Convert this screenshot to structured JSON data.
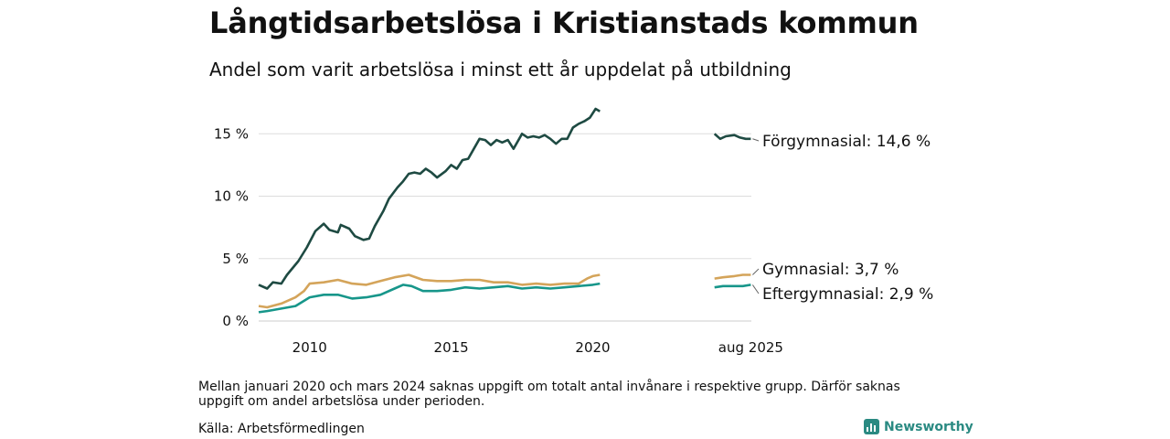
{
  "title": "Långtidsarbetslösa i Kristianstads kommun",
  "subtitle": "Andel som varit arbetslösa i minst ett år uppdelat på utbildning",
  "note": "Mellan januari 2020 och mars 2024 saknas uppgift om totalt antal invånare i respektive grupp. Därför saknas uppgift om andel arbetslösa under perioden.",
  "source": "Källa: Arbetsförmedlingen",
  "brand": "Newsworthy",
  "chart_data": {
    "type": "line",
    "ylim": [
      0,
      17
    ],
    "yticks": [
      0,
      5,
      10,
      15
    ],
    "ytick_labels": [
      "0 %",
      "5 %",
      "10 %",
      "15 %"
    ],
    "xticks": [
      2010,
      2015,
      2020,
      2025.58
    ],
    "xtick_labels": [
      "2010",
      "2015",
      "2020",
      "aug 2025"
    ],
    "grid": "horizontal",
    "series": [
      {
        "name": "Förgymnasial",
        "end_label": "Förgymnasial: 14,6 %",
        "color": "#1e4a42",
        "segments": [
          [
            [
              2008.2,
              2.9
            ],
            [
              2008.5,
              2.6
            ],
            [
              2008.7,
              3.1
            ],
            [
              2009.0,
              3.0
            ],
            [
              2009.2,
              3.7
            ],
            [
              2009.6,
              4.8
            ],
            [
              2009.9,
              5.9
            ],
            [
              2010.2,
              7.2
            ],
            [
              2010.5,
              7.8
            ],
            [
              2010.7,
              7.3
            ],
            [
              2011.0,
              7.1
            ],
            [
              2011.1,
              7.7
            ],
            [
              2011.4,
              7.4
            ],
            [
              2011.6,
              6.8
            ],
            [
              2011.9,
              6.5
            ],
            [
              2012.1,
              6.6
            ],
            [
              2012.3,
              7.6
            ],
            [
              2012.6,
              8.8
            ],
            [
              2012.8,
              9.8
            ],
            [
              2013.1,
              10.7
            ],
            [
              2013.3,
              11.2
            ],
            [
              2013.5,
              11.8
            ],
            [
              2013.7,
              11.9
            ],
            [
              2013.9,
              11.8
            ],
            [
              2014.1,
              12.2
            ],
            [
              2014.3,
              11.9
            ],
            [
              2014.5,
              11.5
            ],
            [
              2014.8,
              12.0
            ],
            [
              2015.0,
              12.5
            ],
            [
              2015.2,
              12.2
            ],
            [
              2015.4,
              12.9
            ],
            [
              2015.6,
              13.0
            ],
            [
              2015.8,
              13.8
            ],
            [
              2016.0,
              14.6
            ],
            [
              2016.2,
              14.5
            ],
            [
              2016.4,
              14.1
            ],
            [
              2016.6,
              14.5
            ],
            [
              2016.8,
              14.3
            ],
            [
              2017.0,
              14.5
            ],
            [
              2017.2,
              13.8
            ],
            [
              2017.4,
              14.6
            ],
            [
              2017.5,
              15.0
            ],
            [
              2017.7,
              14.7
            ],
            [
              2017.9,
              14.8
            ],
            [
              2018.1,
              14.7
            ],
            [
              2018.3,
              14.9
            ],
            [
              2018.5,
              14.6
            ],
            [
              2018.7,
              14.2
            ],
            [
              2018.9,
              14.6
            ],
            [
              2019.1,
              14.6
            ],
            [
              2019.3,
              15.5
            ],
            [
              2019.5,
              15.8
            ],
            [
              2019.7,
              16.0
            ],
            [
              2019.9,
              16.3
            ],
            [
              2020.1,
              17.0
            ],
            [
              2020.25,
              16.8
            ]
          ],
          [
            [
              2024.3,
              15.0
            ],
            [
              2024.5,
              14.6
            ],
            [
              2024.7,
              14.8
            ],
            [
              2025.0,
              14.9
            ],
            [
              2025.2,
              14.7
            ],
            [
              2025.4,
              14.6
            ],
            [
              2025.58,
              14.6
            ]
          ]
        ]
      },
      {
        "name": "Gymnasial",
        "end_label": "Gymnasial:  3,7 %",
        "color": "#d4a45a",
        "segments": [
          [
            [
              2008.2,
              1.2
            ],
            [
              2008.5,
              1.1
            ],
            [
              2009.0,
              1.4
            ],
            [
              2009.5,
              1.9
            ],
            [
              2009.8,
              2.4
            ],
            [
              2010.0,
              3.0
            ],
            [
              2010.5,
              3.1
            ],
            [
              2011.0,
              3.3
            ],
            [
              2011.5,
              3.0
            ],
            [
              2012.0,
              2.9
            ],
            [
              2012.5,
              3.2
            ],
            [
              2013.0,
              3.5
            ],
            [
              2013.5,
              3.7
            ],
            [
              2014.0,
              3.3
            ],
            [
              2014.5,
              3.2
            ],
            [
              2015.0,
              3.2
            ],
            [
              2015.5,
              3.3
            ],
            [
              2016.0,
              3.3
            ],
            [
              2016.5,
              3.1
            ],
            [
              2017.0,
              3.1
            ],
            [
              2017.5,
              2.9
            ],
            [
              2018.0,
              3.0
            ],
            [
              2018.5,
              2.9
            ],
            [
              2019.0,
              3.0
            ],
            [
              2019.5,
              3.0
            ],
            [
              2019.8,
              3.4
            ],
            [
              2020.0,
              3.6
            ],
            [
              2020.25,
              3.7
            ]
          ],
          [
            [
              2024.3,
              3.4
            ],
            [
              2024.6,
              3.5
            ],
            [
              2025.0,
              3.6
            ],
            [
              2025.3,
              3.7
            ],
            [
              2025.58,
              3.7
            ]
          ]
        ]
      },
      {
        "name": "Eftergymnasial",
        "end_label": "Eftergymnasial:  2,9 %",
        "color": "#17968a",
        "segments": [
          [
            [
              2008.2,
              0.7
            ],
            [
              2008.5,
              0.8
            ],
            [
              2009.0,
              1.0
            ],
            [
              2009.5,
              1.2
            ],
            [
              2010.0,
              1.9
            ],
            [
              2010.5,
              2.1
            ],
            [
              2011.0,
              2.1
            ],
            [
              2011.5,
              1.8
            ],
            [
              2012.0,
              1.9
            ],
            [
              2012.5,
              2.1
            ],
            [
              2013.0,
              2.6
            ],
            [
              2013.3,
              2.9
            ],
            [
              2013.6,
              2.8
            ],
            [
              2014.0,
              2.4
            ],
            [
              2014.5,
              2.4
            ],
            [
              2015.0,
              2.5
            ],
            [
              2015.5,
              2.7
            ],
            [
              2016.0,
              2.6
            ],
            [
              2016.5,
              2.7
            ],
            [
              2017.0,
              2.8
            ],
            [
              2017.5,
              2.6
            ],
            [
              2018.0,
              2.7
            ],
            [
              2018.5,
              2.6
            ],
            [
              2019.0,
              2.7
            ],
            [
              2019.5,
              2.8
            ],
            [
              2020.0,
              2.9
            ],
            [
              2020.25,
              3.0
            ]
          ],
          [
            [
              2024.3,
              2.7
            ],
            [
              2024.6,
              2.8
            ],
            [
              2025.0,
              2.8
            ],
            [
              2025.3,
              2.8
            ],
            [
              2025.58,
              2.9
            ]
          ]
        ]
      }
    ]
  }
}
